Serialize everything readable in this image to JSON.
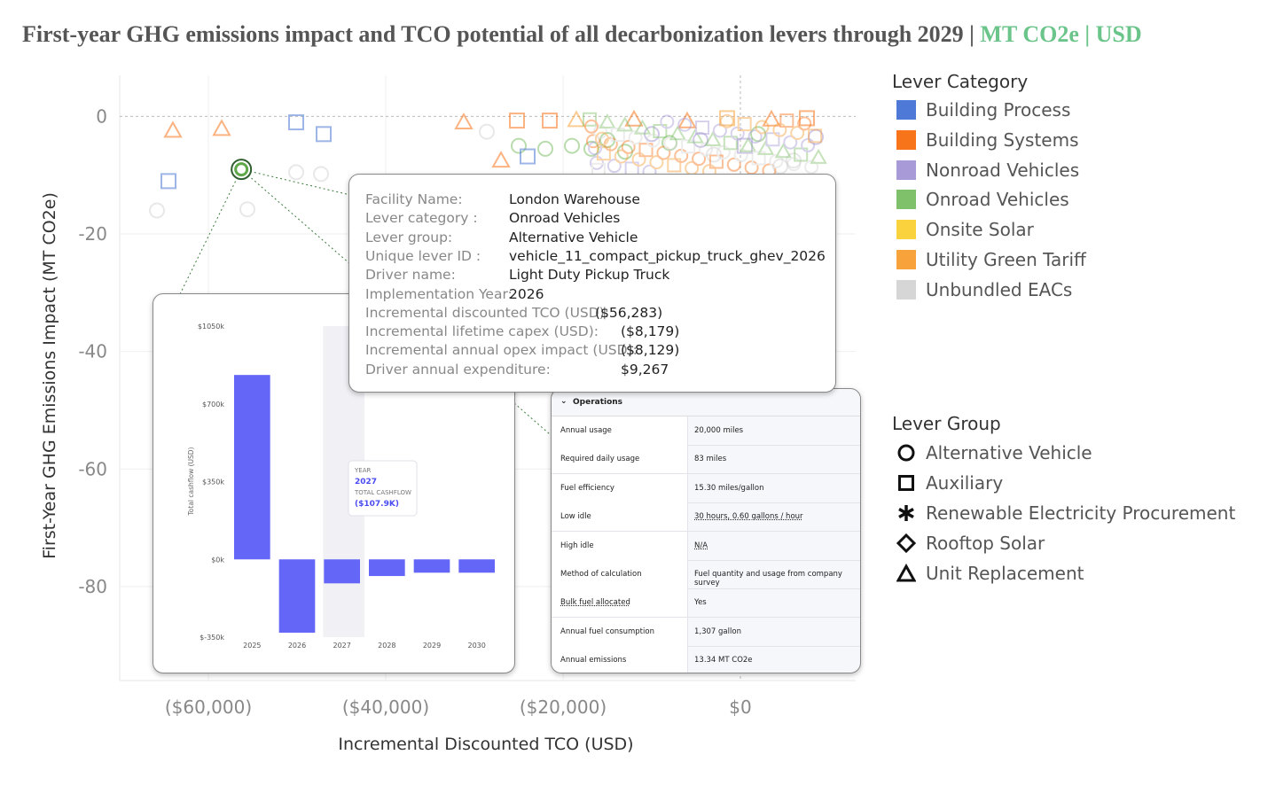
{
  "title": {
    "main": "First-year GHG emissions impact and TCO potential of all decarbonization levers through 2029",
    "separator1": " | ",
    "units": "MT CO2e | USD"
  },
  "chart_data": {
    "type": "scatter",
    "xlabel": "Incremental Discounted TCO (USD)",
    "ylabel": "First-Year GHG Emissions Impact (MT CO2e)",
    "xlim": [
      -70000,
      13000
    ],
    "ylim": [
      -96,
      7
    ],
    "x_ticks": [
      -60000,
      -40000,
      -20000,
      0
    ],
    "x_tick_labels": [
      "($60,000)",
      "($40,000)",
      "($20,000)",
      "$0"
    ],
    "y_ticks": [
      0,
      -20,
      -40,
      -60,
      -80
    ],
    "y_tick_labels": [
      "0",
      "-20",
      "-40",
      "-60",
      "-80"
    ],
    "highlighted_point": {
      "x": -56283,
      "y": -9,
      "category": "Onroad Vehicles",
      "group": "Alternative Vehicle"
    },
    "points": [
      {
        "x": -64000,
        "y": -2.4,
        "c": "Building Systems",
        "g": "Unit Replacement"
      },
      {
        "x": -58500,
        "y": -2.1,
        "c": "Building Systems",
        "g": "Unit Replacement"
      },
      {
        "x": -64500,
        "y": -11,
        "c": "Building Process",
        "g": "Auxiliary"
      },
      {
        "x": -65800,
        "y": -16,
        "c": "Unbundled EACs",
        "g": "Alternative Vehicle"
      },
      {
        "x": -55600,
        "y": -15.8,
        "c": "Unbundled EACs",
        "g": "Alternative Vehicle"
      },
      {
        "x": -50100,
        "y": -1.0,
        "c": "Building Process",
        "g": "Auxiliary"
      },
      {
        "x": -47000,
        "y": -3,
        "c": "Building Process",
        "g": "Auxiliary"
      },
      {
        "x": -50100,
        "y": -9.5,
        "c": "Unbundled EACs",
        "g": "Alternative Vehicle"
      },
      {
        "x": -47300,
        "y": -9.8,
        "c": "Unbundled EACs",
        "g": "Alternative Vehicle"
      },
      {
        "x": -31200,
        "y": -1.0,
        "c": "Building Systems",
        "g": "Unit Replacement"
      },
      {
        "x": -28600,
        "y": -2.6,
        "c": "Unbundled EACs",
        "g": "Alternative Vehicle"
      },
      {
        "x": -25000,
        "y": -5,
        "c": "Onroad Vehicles",
        "g": "Alternative Vehicle"
      },
      {
        "x": -25200,
        "y": -0.7,
        "c": "Building Systems",
        "g": "Auxiliary"
      },
      {
        "x": -21500,
        "y": -0.7,
        "c": "Building Systems",
        "g": "Auxiliary"
      },
      {
        "x": -18500,
        "y": -0.6,
        "c": "Utility Green Tariff",
        "g": "Unit Replacement"
      },
      {
        "x": -24000,
        "y": -6.8,
        "c": "Building Process",
        "g": "Auxiliary"
      },
      {
        "x": -27000,
        "y": -7.5,
        "c": "Building Systems",
        "g": "Unit Replacement"
      },
      {
        "x": -22000,
        "y": -5.5,
        "c": "Onroad Vehicles",
        "g": "Alternative Vehicle"
      },
      {
        "x": -19000,
        "y": -5.0,
        "c": "Onroad Vehicles",
        "g": "Alternative Vehicle"
      },
      {
        "x": -16800,
        "y": -5.5,
        "c": "Onroad Vehicles",
        "g": "Alternative Vehicle"
      },
      {
        "x": -15000,
        "y": -4.0,
        "c": "Onroad Vehicles",
        "g": "Alternative Vehicle"
      },
      {
        "x": -13000,
        "y": -6.0,
        "c": "Onroad Vehicles",
        "g": "Alternative Vehicle"
      },
      {
        "x": -12000,
        "y": -0.5,
        "c": "Building Systems",
        "g": "Unit Replacement"
      },
      {
        "x": -10000,
        "y": -3.0,
        "c": "Nonroad Vehicles",
        "g": "Alternative Vehicle"
      },
      {
        "x": -8000,
        "y": -4.5,
        "c": "Onroad Vehicles",
        "g": "Alternative Vehicle"
      },
      {
        "x": -6000,
        "y": -0.8,
        "c": "Building Systems",
        "g": "Unit Replacement"
      },
      {
        "x": -4500,
        "y": -4.0,
        "c": "Nonroad Vehicles",
        "g": "Alternative Vehicle"
      },
      {
        "x": -3000,
        "y": -6.5,
        "c": "Unbundled EACs",
        "g": "Alternative Vehicle"
      },
      {
        "x": -1500,
        "y": -0.3,
        "c": "Utility Green Tariff",
        "g": "Auxiliary"
      },
      {
        "x": 500,
        "y": -5.0,
        "c": "Nonroad Vehicles",
        "g": "Auxiliary"
      },
      {
        "x": 2000,
        "y": -3.0,
        "c": "Onroad Vehicles",
        "g": "Alternative Vehicle"
      },
      {
        "x": 3500,
        "y": -0.5,
        "c": "Building Systems",
        "g": "Unit Replacement"
      },
      {
        "x": 4500,
        "y": -8.5,
        "c": "Unbundled EACs",
        "g": "Alternative Vehicle"
      },
      {
        "x": 6000,
        "y": -7.5,
        "c": "Unbundled EACs",
        "g": "Alternative Vehicle"
      },
      {
        "x": 7500,
        "y": -0.3,
        "c": "Building Systems",
        "g": "Auxiliary"
      },
      {
        "x": 8500,
        "y": -3.5,
        "c": "Nonroad Vehicles",
        "g": "Alternative Vehicle"
      }
    ]
  },
  "legend": {
    "category_title": "Lever Category",
    "categories": [
      {
        "label": "Building Process",
        "color": "#4e79d6"
      },
      {
        "label": "Building Systems",
        "color": "#f8741a"
      },
      {
        "label": "Nonroad Vehicles",
        "color": "#a89ad6"
      },
      {
        "label": "Onroad Vehicles",
        "color": "#7fc06a"
      },
      {
        "label": "Onsite Solar",
        "color": "#f9d23d"
      },
      {
        "label": "Utility Green Tariff",
        "color": "#f7a23b"
      },
      {
        "label": "Unbundled EACs",
        "color": "#d6d6d6"
      }
    ],
    "group_title": "Lever Group",
    "groups": [
      {
        "label": "Alternative Vehicle",
        "shape": "circle-icon"
      },
      {
        "label": "Auxiliary",
        "shape": "square-icon"
      },
      {
        "label": "Renewable Electricity Procurement",
        "shape": "asterisk-icon"
      },
      {
        "label": "Rooftop Solar",
        "shape": "diamond-icon"
      },
      {
        "label": "Unit Replacement",
        "shape": "triangle-icon"
      }
    ]
  },
  "tooltip": {
    "rows": [
      {
        "label": "Facility Name:",
        "value": "London Warehouse"
      },
      {
        "label": "Lever category :",
        "value": "Onroad Vehicles"
      },
      {
        "label": "Lever group:",
        "value": "Alternative Vehicle"
      },
      {
        "label": "Unique lever ID :",
        "value": "vehicle_11_compact_pickup_truck_ghev_2026"
      },
      {
        "label": "Driver name:",
        "value": "Light Duty Pickup Truck"
      },
      {
        "label": "Implementation Year:",
        "value": "2026"
      },
      {
        "label": "Incremental discounted TCO (USD):",
        "value": "($56,283)"
      },
      {
        "label": "Incremental lifetime capex (USD):",
        "value": "($8,179)"
      },
      {
        "label": "Incremental annual opex impact (USD):",
        "value": "($8,129)"
      },
      {
        "label": "Driver annual expenditure:",
        "value": "$9,267"
      }
    ]
  },
  "cashflow_chart": {
    "chart_data": {
      "type": "bar",
      "ylabel": "Total cashflow (USD)",
      "categories": [
        "2025",
        "2026",
        "2027",
        "2028",
        "2029",
        "2030"
      ],
      "values": [
        830,
        -330,
        -107.9,
        -75,
        -60,
        -60
      ],
      "ylim": [
        -350,
        1050
      ],
      "y_ticks": [
        1050,
        700,
        350,
        0,
        -350
      ],
      "y_tick_labels": [
        "$1050k",
        "$700k",
        "$350k",
        "$0k",
        "$-350k"
      ],
      "highlighted_index": 2,
      "bar_color": "#6466f7"
    },
    "hover": {
      "year_label": "YEAR",
      "year_value": "2027",
      "cashflow_label": "TOTAL CASHFLOW",
      "cashflow_value": "($107.9K)"
    }
  },
  "operations": {
    "header": "Operations",
    "rows": [
      {
        "label": "Annual usage",
        "value": "20,000 miles"
      },
      {
        "label": "Required daily usage",
        "value": "83 miles"
      },
      {
        "label": "Fuel efficiency",
        "value": "15.30 miles/gallon"
      },
      {
        "label": "Low idle",
        "value": "30 hours, 0.60 gallons / hour"
      },
      {
        "label": "High idle",
        "value": "N/A"
      },
      {
        "label": "Method of calculation",
        "value": "Fuel quantity and usage from company survey"
      },
      {
        "label": "Bulk fuel allocated",
        "value": "Yes"
      },
      {
        "label": "Annual fuel consumption",
        "value": "1,307 gallon"
      },
      {
        "label": "Annual emissions",
        "value": "13.34 MT CO2e"
      }
    ]
  }
}
